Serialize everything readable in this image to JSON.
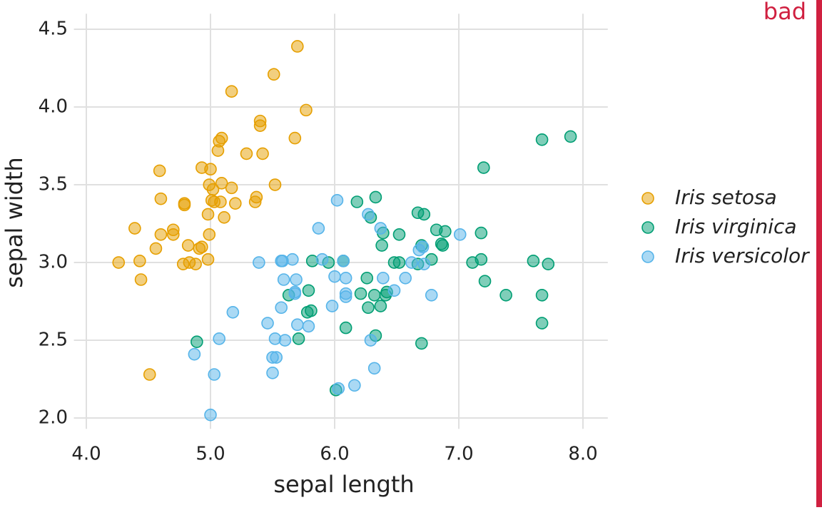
{
  "chart_data": {
    "type": "scatter",
    "xlabel": "sepal length",
    "ylabel": "sepal width",
    "annotation": "bad",
    "xlim": [
      3.9,
      8.2
    ],
    "ylim": [
      1.93,
      4.6
    ],
    "xticks": [
      {
        "value": 4,
        "label": "4.0"
      },
      {
        "value": 5,
        "label": "5.0"
      },
      {
        "value": 6,
        "label": "6.0"
      },
      {
        "value": 7,
        "label": "7.0"
      },
      {
        "value": 8,
        "label": "8.0"
      }
    ],
    "yticks": [
      {
        "value": 2,
        "label": "2.0"
      },
      2.5,
      {
        "value": 3,
        "label": "3.0"
      },
      3.5,
      {
        "value": 4,
        "label": "4.0"
      },
      4.5
    ],
    "grid": true,
    "legend": "right",
    "series": [
      {
        "name": "Iris setosa",
        "color": "#E69F00",
        "x": [
          5.7,
          5.51,
          5.17,
          5.77,
          5.4,
          5.4,
          5.09,
          5.07,
          5.68,
          5.06,
          5.29,
          5.42,
          4.59,
          4.93,
          5.0,
          4.99,
          5.09,
          5.02,
          5.17,
          5.52,
          4.6,
          4.79,
          4.79,
          5.01,
          5.03,
          5.08,
          5.2,
          5.36,
          5.37,
          4.98,
          5.11,
          4.39,
          4.7,
          4.7,
          4.6,
          4.99,
          4.93,
          4.56,
          4.82,
          4.91,
          4.26,
          4.43,
          4.98,
          4.83,
          4.78,
          4.88,
          4.44,
          4.51
        ],
        "values": [
          4.39,
          4.21,
          4.1,
          3.98,
          3.91,
          3.88,
          3.8,
          3.78,
          3.8,
          3.72,
          3.7,
          3.7,
          3.59,
          3.61,
          3.6,
          3.5,
          3.51,
          3.47,
          3.48,
          3.5,
          3.41,
          3.38,
          3.37,
          3.4,
          3.39,
          3.39,
          3.38,
          3.39,
          3.42,
          3.31,
          3.29,
          3.22,
          3.21,
          3.18,
          3.18,
          3.18,
          3.1,
          3.09,
          3.11,
          3.09,
          3.0,
          3.01,
          3.02,
          3.0,
          2.99,
          2.99,
          2.89,
          2.28
        ]
      },
      {
        "name": "Iris virginica",
        "color": "#009E73",
        "x": [
          7.9,
          7.67,
          7.2,
          6.33,
          6.18,
          6.67,
          6.72,
          6.29,
          6.82,
          6.89,
          7.18,
          6.39,
          6.52,
          6.38,
          6.7,
          6.86,
          6.87,
          5.82,
          5.95,
          6.07,
          6.48,
          6.52,
          6.67,
          6.78,
          7.11,
          7.18,
          7.6,
          7.72,
          6.26,
          7.21,
          5.63,
          5.79,
          6.21,
          6.32,
          6.41,
          6.42,
          7.38,
          7.67,
          5.78,
          5.81,
          6.27,
          6.37,
          6.09,
          7.67,
          5.71,
          6.33,
          6.7,
          4.89,
          6.01
        ],
        "values": [
          3.81,
          3.79,
          3.61,
          3.42,
          3.39,
          3.32,
          3.31,
          3.29,
          3.21,
          3.2,
          3.19,
          3.19,
          3.18,
          3.11,
          3.11,
          3.12,
          3.11,
          3.01,
          3.0,
          3.01,
          3.0,
          3.0,
          2.99,
          3.02,
          3.0,
          3.02,
          3.01,
          2.99,
          2.9,
          2.88,
          2.79,
          2.82,
          2.8,
          2.79,
          2.79,
          2.81,
          2.79,
          2.79,
          2.68,
          2.69,
          2.71,
          2.72,
          2.58,
          2.61,
          2.51,
          2.53,
          2.48,
          2.49,
          2.18
        ]
      },
      {
        "name": "Iris versicolor",
        "color": "#56B4E9",
        "x": [
          6.02,
          5.87,
          7.01,
          6.37,
          6.27,
          5.39,
          5.57,
          5.58,
          5.66,
          5.9,
          6.07,
          6.68,
          6.71,
          6.62,
          6.72,
          5.59,
          5.69,
          6.0,
          6.09,
          6.39,
          6.57,
          5.68,
          5.68,
          6.09,
          6.09,
          6.48,
          6.78,
          5.57,
          5.18,
          5.98,
          5.46,
          5.7,
          5.79,
          5.07,
          5.52,
          5.6,
          6.29,
          5.5,
          5.53,
          4.87,
          5.5,
          5.03,
          6.32,
          6.16,
          6.03,
          5.0
        ],
        "values": [
          3.4,
          3.22,
          3.18,
          3.22,
          3.31,
          3.0,
          3.01,
          3.01,
          3.02,
          3.02,
          3.01,
          3.08,
          3.1,
          3.0,
          2.99,
          2.89,
          2.89,
          2.91,
          2.9,
          2.9,
          2.9,
          2.81,
          2.8,
          2.8,
          2.78,
          2.82,
          2.79,
          2.71,
          2.68,
          2.72,
          2.61,
          2.6,
          2.59,
          2.51,
          2.51,
          2.5,
          2.5,
          2.39,
          2.39,
          2.41,
          2.29,
          2.28,
          2.32,
          2.21,
          2.19,
          2.02
        ]
      }
    ]
  }
}
